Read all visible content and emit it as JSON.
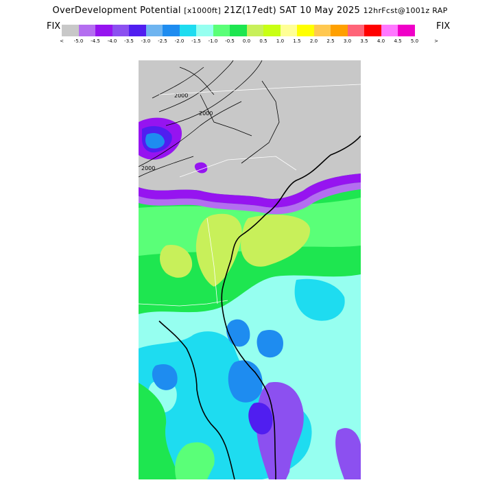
{
  "header": {
    "product": "OverDevelopment Potential",
    "units": "[x1000ft]",
    "valid": "21Z(17edt) SAT 10 May 2025",
    "run": "12hrFcst@1001z RAP"
  },
  "legend": {
    "left_label": "FIX",
    "right_label": "FIX",
    "under_arrow": "<",
    "over_arrow": ">",
    "colors": [
      "#c8c8c8",
      "#b46ef0",
      "#9614f0",
      "#8c50f0",
      "#501ef0",
      "#6eb4f0",
      "#1e8cf0",
      "#1edcf0",
      "#96fff0",
      "#5aff78",
      "#1ee650",
      "#c8f05a",
      "#c8ff14",
      "#ffff96",
      "#ffff00",
      "#ffc850",
      "#ffa000",
      "#ff6478",
      "#ff0000",
      "#ff78ff",
      "#f000c8"
    ],
    "tick_labels": [
      "-5.0",
      "-4.5",
      "-4.0",
      "-3.5",
      "-3.0",
      "-2.5",
      "-2.0",
      "-1.5",
      "-1.0",
      "-0.5",
      "0.0",
      "0.5",
      "1.0",
      "1.5",
      "2.0",
      "2.5",
      "3.0",
      "3.5",
      "4.0",
      "4.5",
      "5.0"
    ]
  },
  "map": {
    "contour_labels": [
      "2000",
      "2000",
      "2000"
    ],
    "field_colors": {
      "missing": "#c8c8c8",
      "green": "#1ee650",
      "light_green": "#5aff78",
      "yellow_green": "#c8f05a",
      "cyan": "#96fff0",
      "light_blue": "#1edcf0",
      "blue": "#1e8cf0",
      "violet": "#8c50f0",
      "purple": "#9614f0",
      "indigo": "#501ef0",
      "lilac": "#b46ef0"
    }
  }
}
